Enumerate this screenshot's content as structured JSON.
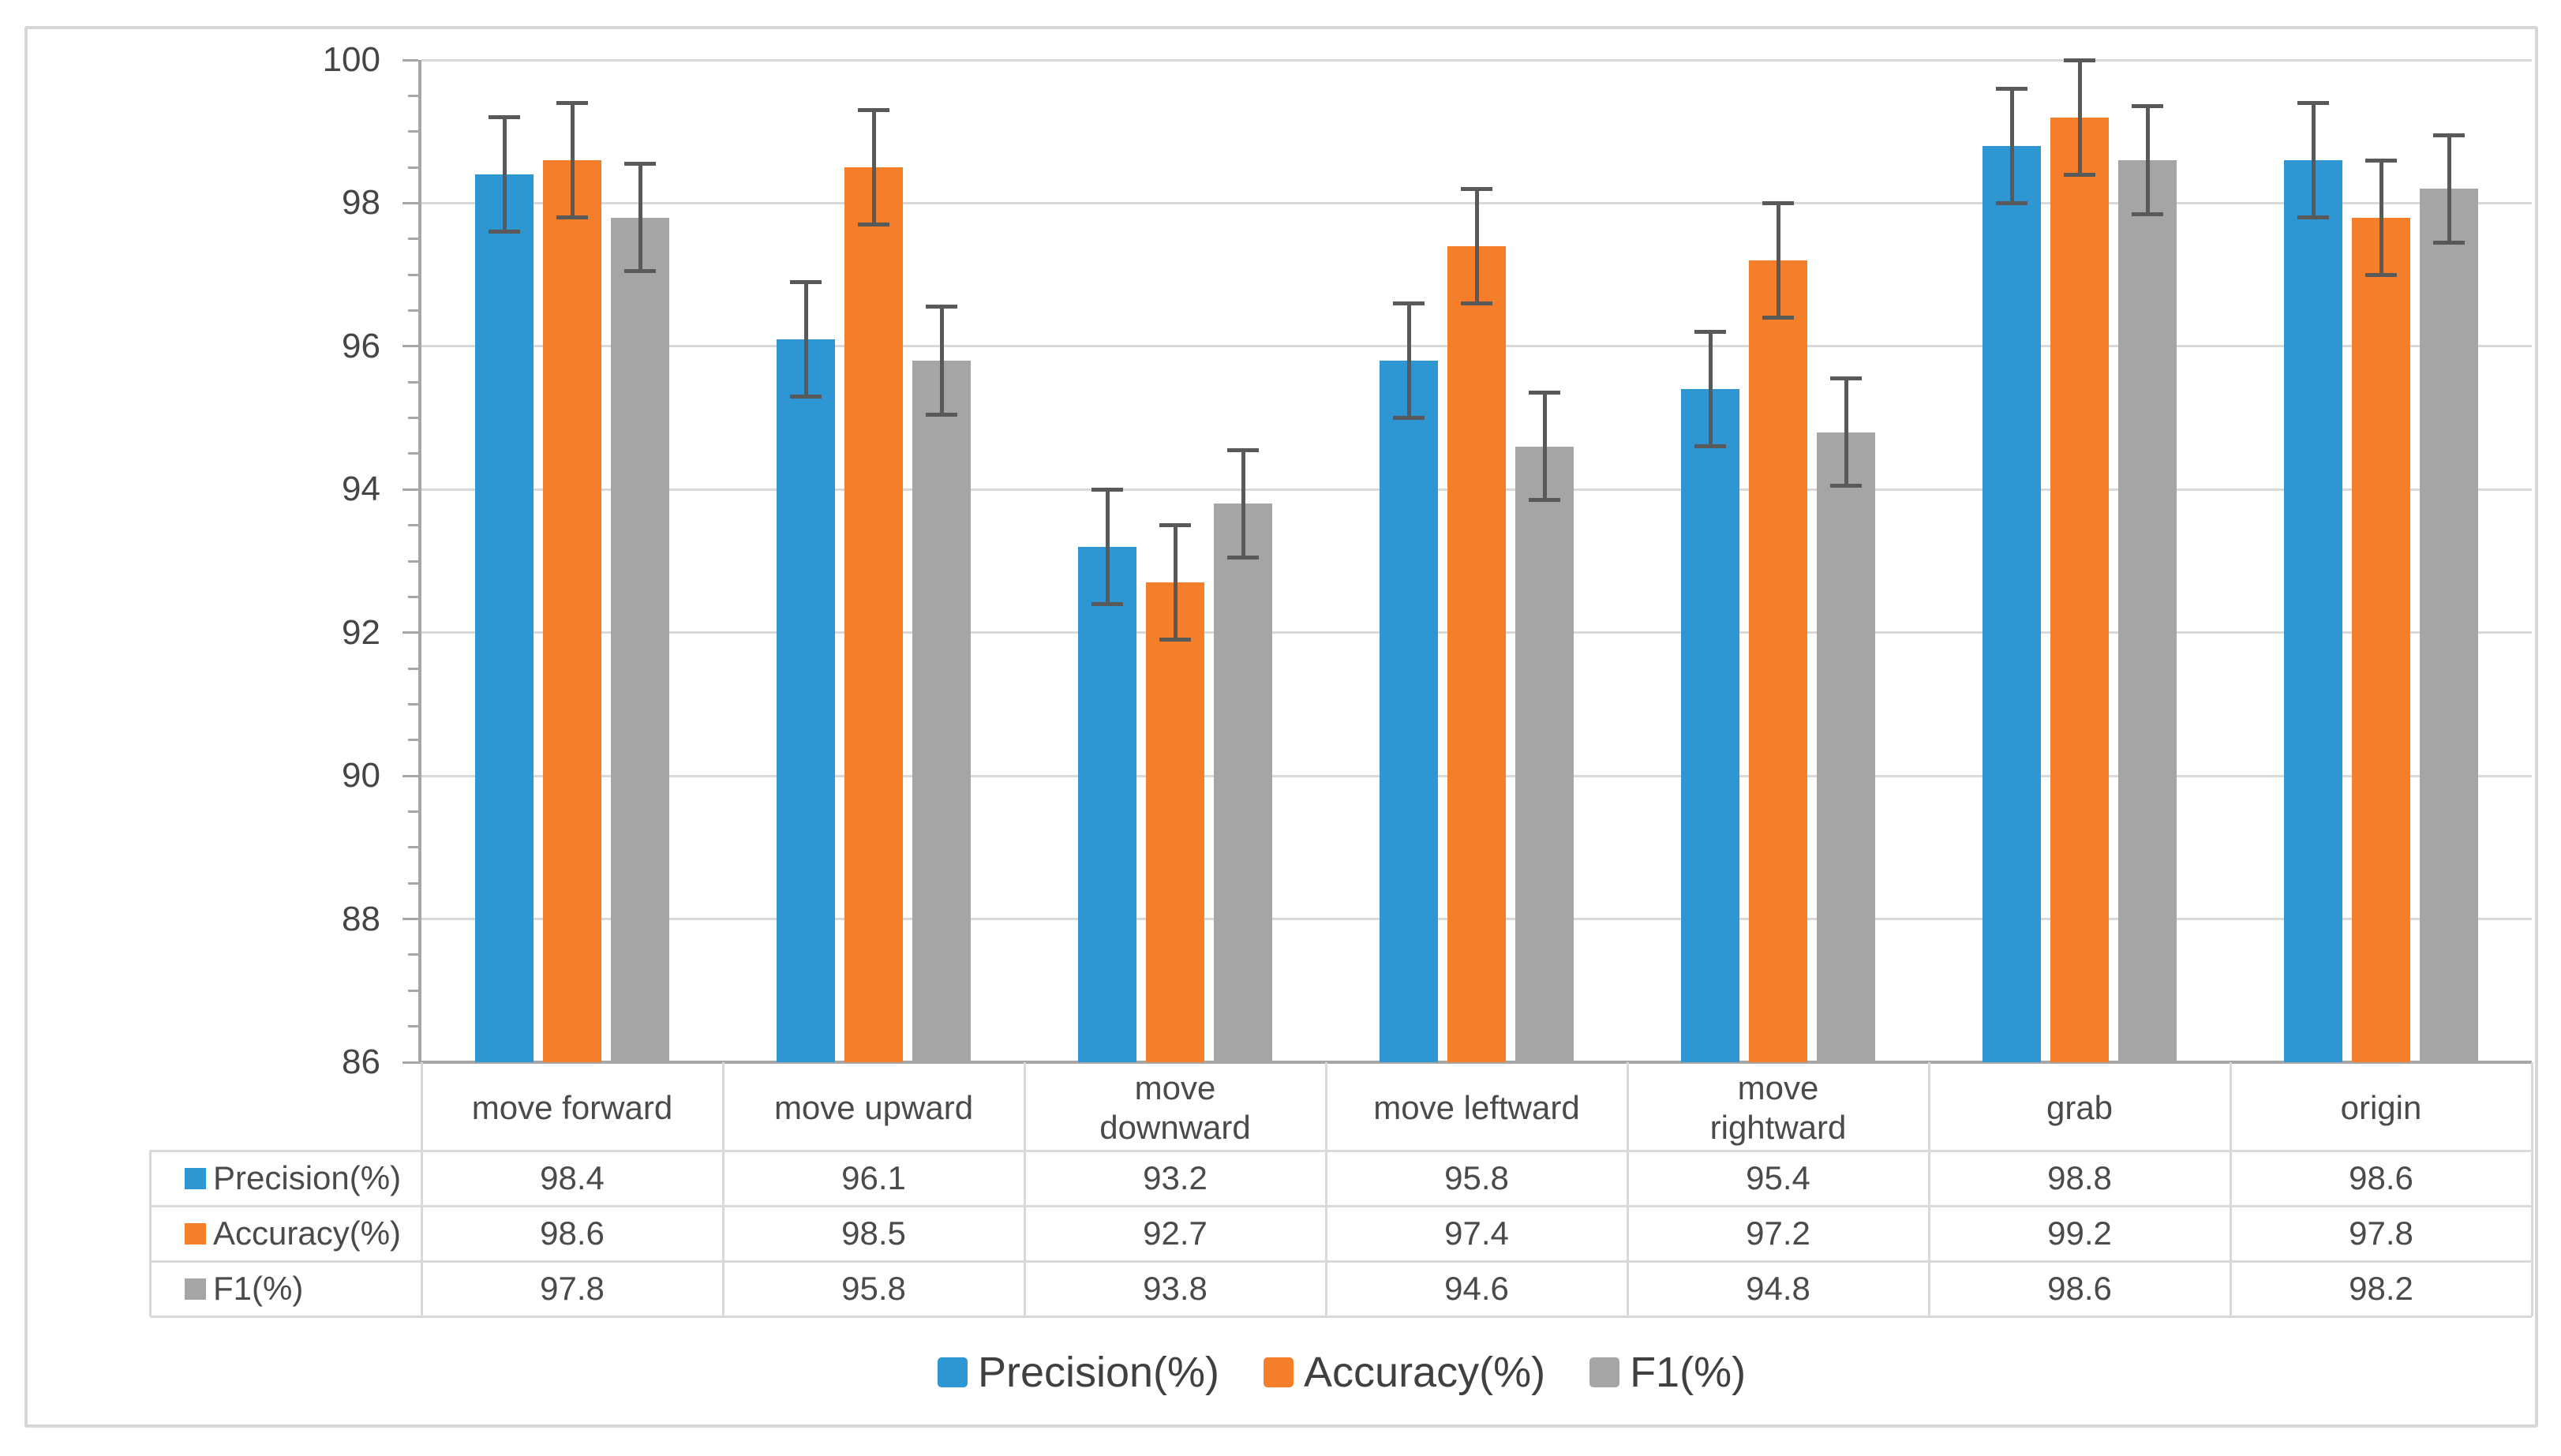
{
  "chart_data": {
    "type": "bar",
    "title": "",
    "categories": [
      "move forward",
      "move upward",
      "move downward",
      "move leftward",
      "move rightward",
      "grab",
      "origin"
    ],
    "categories_display": [
      "move forward",
      "move upward",
      "move\ndownward",
      "move leftward",
      "move\nrightward",
      "grab",
      "origin"
    ],
    "series": [
      {
        "name": "Precision(%)",
        "color": "#2e96d3",
        "values": [
          98.4,
          96.1,
          93.2,
          95.8,
          95.4,
          98.8,
          98.6
        ],
        "error_bar": 0.8
      },
      {
        "name": "Accuracy(%)",
        "color": "#f57e2b",
        "values": [
          98.6,
          98.5,
          92.7,
          97.4,
          97.2,
          99.2,
          97.8
        ],
        "error_bar": 0.8
      },
      {
        "name": "F1(%)",
        "color": "#a5a5a5",
        "values": [
          97.8,
          95.8,
          93.8,
          94.6,
          94.8,
          98.6,
          98.2
        ],
        "error_bar": 0.75
      }
    ],
    "ylim": [
      86,
      100
    ],
    "ytick_step": 2,
    "ytick_labels": [
      "86",
      "88",
      "90",
      "92",
      "94",
      "96",
      "98",
      "100"
    ],
    "minor_tick_step": 0.5,
    "grid": true,
    "error_bars": true,
    "data_table_shown": true,
    "legend_position": "bottom",
    "colors": {
      "gridline": "#d9d9d9",
      "axis": "#a6a6a6",
      "error_bar": "#595959",
      "text": "#4a4a4a",
      "table_border": "#d9d9d9",
      "frame_border": "#d6d6d6",
      "background": "#ffffff"
    }
  }
}
